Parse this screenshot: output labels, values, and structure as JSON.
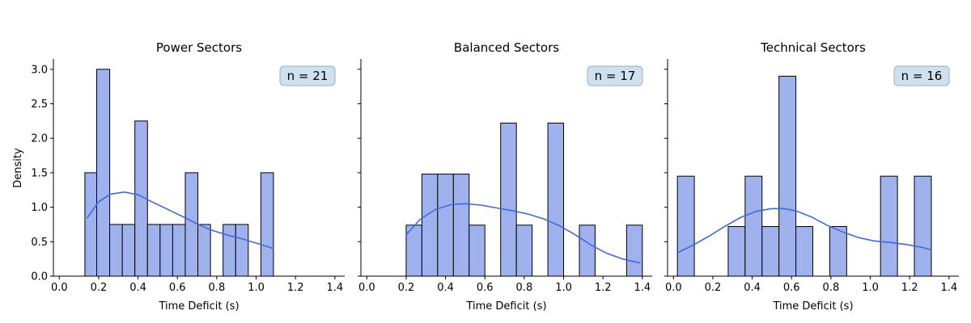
{
  "colors": {
    "bar_fill": "#a0b2ee",
    "bar_edge": "#000000",
    "kde_line": "#4169e1",
    "badge_fill": "#cfe0ee",
    "badge_edge": "#9aaec2"
  },
  "shared": {
    "ylabel": "Density",
    "y_ticks": [
      "0.0",
      "0.5",
      "1.0",
      "1.5",
      "2.0",
      "2.5",
      "3.0"
    ],
    "x_ticks": [
      "0.0",
      "0.2",
      "0.4",
      "0.6",
      "0.8",
      "1.0",
      "1.2",
      "1.4"
    ]
  },
  "chart_data": [
    {
      "type": "bar",
      "title": "Power Sectors",
      "xlabel": "Time Deficit (s)",
      "ylabel": "Density",
      "xlim": [
        -0.03,
        1.45
      ],
      "ylim": [
        0,
        3.15
      ],
      "annotation": "n = 21",
      "bins": [
        {
          "x0": 0.13,
          "x1": 0.19,
          "y": 1.5
        },
        {
          "x0": 0.19,
          "x1": 0.256,
          "y": 3.0
        },
        {
          "x0": 0.256,
          "x1": 0.32,
          "y": 0.75
        },
        {
          "x0": 0.32,
          "x1": 0.384,
          "y": 0.75
        },
        {
          "x0": 0.384,
          "x1": 0.448,
          "y": 2.25
        },
        {
          "x0": 0.448,
          "x1": 0.512,
          "y": 0.75
        },
        {
          "x0": 0.512,
          "x1": 0.576,
          "y": 0.75
        },
        {
          "x0": 0.576,
          "x1": 0.64,
          "y": 0.75
        },
        {
          "x0": 0.64,
          "x1": 0.704,
          "y": 1.5
        },
        {
          "x0": 0.704,
          "x1": 0.768,
          "y": 0.75
        },
        {
          "x0": 0.832,
          "x1": 0.896,
          "y": 0.75
        },
        {
          "x0": 0.896,
          "x1": 0.96,
          "y": 0.75
        },
        {
          "x0": 1.024,
          "x1": 1.088,
          "y": 1.5
        }
      ],
      "kde": {
        "x": [
          0.14,
          0.2,
          0.26,
          0.33,
          0.4,
          0.47,
          0.55,
          0.63,
          0.7,
          0.77,
          0.85,
          0.93,
          1.0,
          1.09
        ],
        "y": [
          0.84,
          1.08,
          1.19,
          1.22,
          1.18,
          1.08,
          0.97,
          0.86,
          0.76,
          0.67,
          0.6,
          0.54,
          0.48,
          0.4
        ]
      }
    },
    {
      "type": "bar",
      "title": "Balanced Sectors",
      "xlabel": "Time Deficit (s)",
      "ylabel": "Density",
      "xlim": [
        -0.03,
        1.45
      ],
      "ylim": [
        0,
        3.15
      ],
      "annotation": "n = 17",
      "bins": [
        {
          "x0": 0.2,
          "x1": 0.28,
          "y": 0.74
        },
        {
          "x0": 0.28,
          "x1": 0.36,
          "y": 1.48
        },
        {
          "x0": 0.36,
          "x1": 0.44,
          "y": 1.48
        },
        {
          "x0": 0.44,
          "x1": 0.52,
          "y": 1.48
        },
        {
          "x0": 0.52,
          "x1": 0.6,
          "y": 0.74
        },
        {
          "x0": 0.68,
          "x1": 0.76,
          "y": 2.22
        },
        {
          "x0": 0.76,
          "x1": 0.84,
          "y": 0.74
        },
        {
          "x0": 0.92,
          "x1": 1.0,
          "y": 2.22
        },
        {
          "x0": 1.08,
          "x1": 1.16,
          "y": 0.74
        },
        {
          "x0": 1.32,
          "x1": 1.4,
          "y": 0.74
        }
      ],
      "kde": {
        "x": [
          0.2,
          0.27,
          0.35,
          0.43,
          0.5,
          0.58,
          0.66,
          0.74,
          0.82,
          0.9,
          0.98,
          1.06,
          1.14,
          1.22,
          1.3,
          1.39
        ],
        "y": [
          0.6,
          0.82,
          0.97,
          1.04,
          1.05,
          1.03,
          0.99,
          0.95,
          0.9,
          0.83,
          0.73,
          0.6,
          0.45,
          0.33,
          0.25,
          0.19
        ]
      }
    },
    {
      "type": "bar",
      "title": "Technical Sectors",
      "xlabel": "Time Deficit (s)",
      "ylabel": "Density",
      "xlim": [
        -0.03,
        1.45
      ],
      "ylim": [
        0,
        3.15
      ],
      "annotation": "n = 16",
      "bins": [
        {
          "x0": 0.02,
          "x1": 0.106,
          "y": 1.45
        },
        {
          "x0": 0.278,
          "x1": 0.364,
          "y": 0.72
        },
        {
          "x0": 0.364,
          "x1": 0.45,
          "y": 1.45
        },
        {
          "x0": 0.45,
          "x1": 0.536,
          "y": 0.72
        },
        {
          "x0": 0.536,
          "x1": 0.622,
          "y": 2.9
        },
        {
          "x0": 0.622,
          "x1": 0.708,
          "y": 0.72
        },
        {
          "x0": 0.794,
          "x1": 0.88,
          "y": 0.72
        },
        {
          "x0": 1.052,
          "x1": 1.138,
          "y": 1.45
        },
        {
          "x0": 1.224,
          "x1": 1.31,
          "y": 1.45
        }
      ],
      "kde": {
        "x": [
          0.02,
          0.1,
          0.18,
          0.26,
          0.34,
          0.42,
          0.5,
          0.56,
          0.62,
          0.7,
          0.78,
          0.86,
          0.94,
          1.02,
          1.1,
          1.18,
          1.26,
          1.31
        ],
        "y": [
          0.34,
          0.45,
          0.58,
          0.72,
          0.85,
          0.94,
          0.98,
          0.98,
          0.95,
          0.86,
          0.74,
          0.64,
          0.56,
          0.51,
          0.49,
          0.46,
          0.42,
          0.38
        ]
      }
    }
  ]
}
